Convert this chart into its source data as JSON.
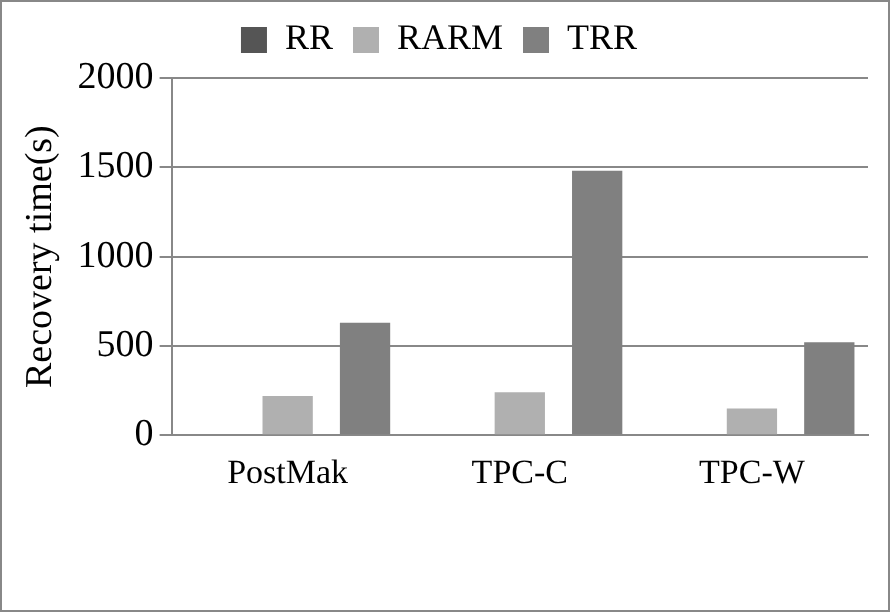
{
  "chart_data": {
    "type": "bar",
    "ylabel": "Recovery time(s)",
    "categories": [
      "PostMak",
      "TPC-C",
      "TPC-W"
    ],
    "series": [
      {
        "name": "RR",
        "color": "#555555",
        "values": [
          0,
          0,
          0
        ]
      },
      {
        "name": "RARM",
        "color": "#b0b0b0",
        "values": [
          220,
          240,
          150
        ]
      },
      {
        "name": "TRR",
        "color": "#808080",
        "values": [
          630,
          1480,
          520
        ]
      }
    ],
    "ylim": [
      0,
      2000
    ],
    "yticks": [
      0,
      500,
      1000,
      1500,
      2000
    ],
    "grid": "y",
    "legend": "top"
  }
}
